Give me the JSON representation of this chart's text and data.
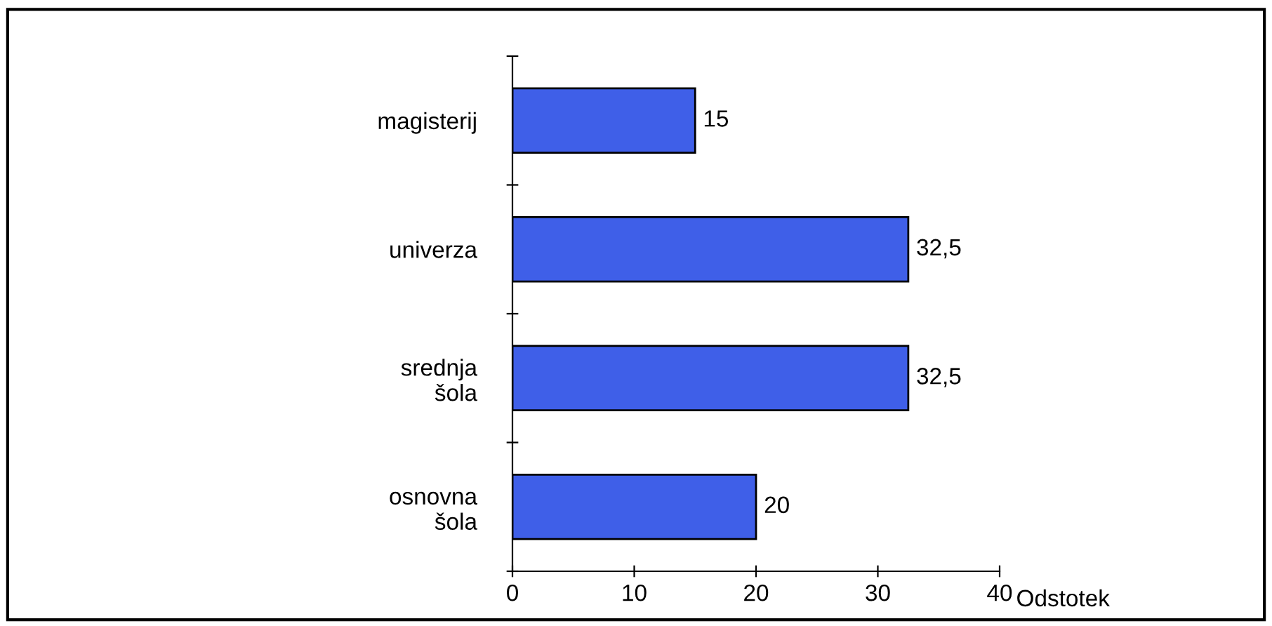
{
  "chart_data": {
    "type": "bar",
    "orientation": "horizontal",
    "categories": [
      "magisterij",
      "univerza",
      "srednja šola",
      "osnovna šola"
    ],
    "values": [
      15,
      32.5,
      32.5,
      20
    ],
    "value_labels": [
      "15",
      "32,5",
      "32,5",
      "20"
    ],
    "color": "#3f5fe8",
    "xlim": [
      0,
      40
    ],
    "xticks": [
      0,
      10,
      20,
      30,
      40
    ],
    "xlabel": "Odstotek",
    "grid": false,
    "legend": false
  }
}
